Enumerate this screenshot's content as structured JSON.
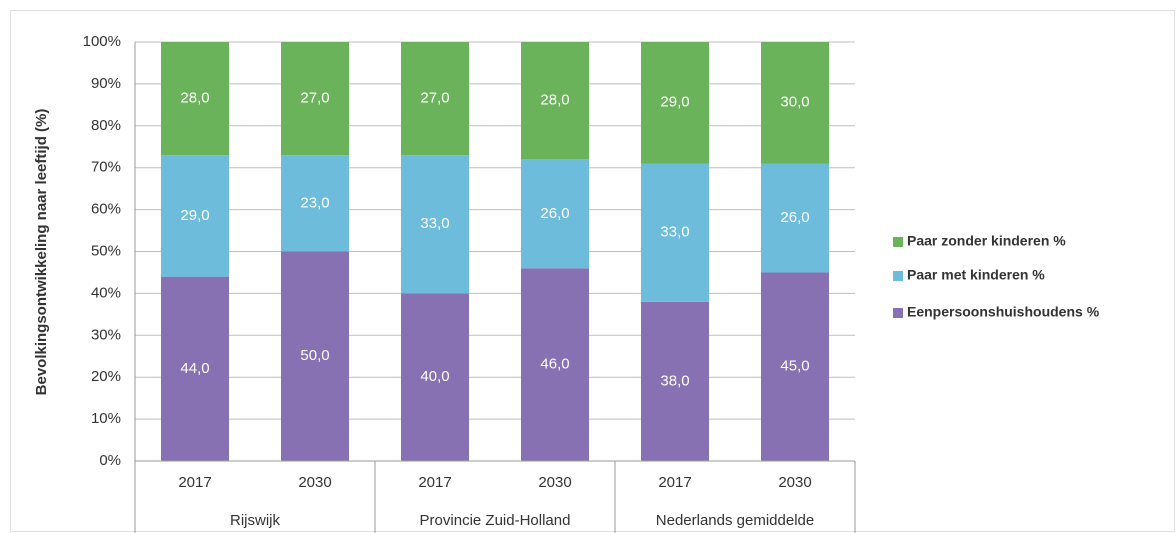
{
  "chart_data": {
    "type": "stacked_bar",
    "y_label": "Bevolkingsontwikkeling naar leeftijd (%)",
    "categories": [
      "2017",
      "2030",
      "2017",
      "2030",
      "2017",
      "2030"
    ],
    "groups": [
      "Rijswijk",
      "Provincie Zuid-Holland",
      "Nederlands gemiddelde"
    ],
    "series": [
      {
        "name": "Eenpersoonshuishoudens %",
        "color": "#8771b3",
        "values": [
          44,
          50,
          40,
          46,
          38,
          45
        ],
        "value_labels": [
          "44,0",
          "50,0",
          "40,0",
          "46,0",
          "38,0",
          "45,0"
        ]
      },
      {
        "name": "Paar met kinderen %",
        "color": "#6dbcdc",
        "values": [
          29,
          23,
          33,
          26,
          33,
          26
        ],
        "value_labels": [
          "29,0",
          "23,0",
          "33,0",
          "26,0",
          "33,0",
          "26,0"
        ]
      },
      {
        "name": "Paar zonder kinderen %",
        "color": "#6bb35b",
        "values": [
          28,
          27,
          27,
          28,
          29,
          30
        ],
        "value_labels": [
          "28,0",
          "27,0",
          "27,0",
          "28,0",
          "29,0",
          "30,0"
        ]
      }
    ],
    "ylim": [
      0,
      100
    ],
    "yticks": [
      {
        "value": 0,
        "label": "0%"
      },
      {
        "value": 10,
        "label": "10%"
      },
      {
        "value": 20,
        "label": "20%"
      },
      {
        "value": 30,
        "label": "30%"
      },
      {
        "value": 40,
        "label": "40%"
      },
      {
        "value": 50,
        "label": "50%"
      },
      {
        "value": 60,
        "label": "60%"
      },
      {
        "value": 70,
        "label": "70%"
      },
      {
        "value": 80,
        "label": "80%"
      },
      {
        "value": 90,
        "label": "90%"
      },
      {
        "value": 100,
        "label": "100%"
      }
    ],
    "grid": true,
    "legend": "right"
  }
}
